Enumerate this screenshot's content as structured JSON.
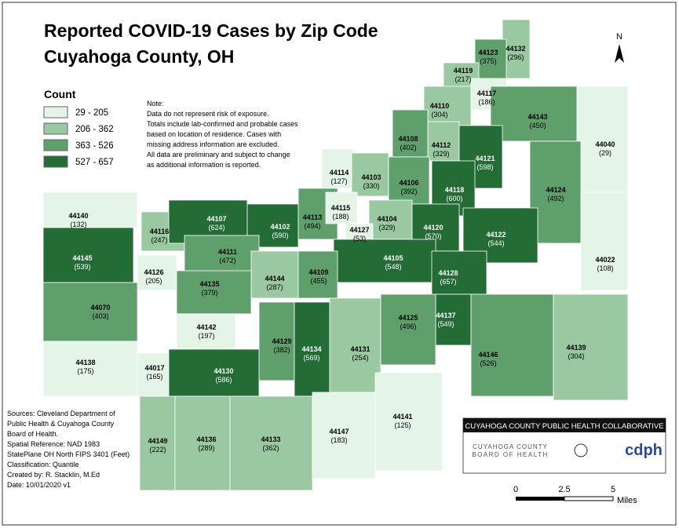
{
  "title": "Reported COVID-19 Cases by Zip Code",
  "subtitle": "Cuyahoga County, OH",
  "legend": {
    "title": "Count",
    "classes": [
      {
        "label": "29 - 205",
        "min": 29,
        "max": 205,
        "color": "#e4f4e6"
      },
      {
        "label": "206 - 362",
        "min": 206,
        "max": 362,
        "color": "#99c8a1"
      },
      {
        "label": "363 - 526",
        "min": 363,
        "max": 526,
        "color": "#5f9f6c"
      },
      {
        "label": "527 - 657",
        "min": 527,
        "max": 657,
        "color": "#246c36"
      }
    ]
  },
  "note": [
    "Note:",
    "Data do not represent risk of exposure.",
    "Totals include lab-confirmed and probable cases",
    "based on location of residence. Cases with",
    "missing address information are excluded.",
    "All data are preliminary and subject to change",
    "as additional information is reported."
  ],
  "sources": [
    "Sources: Cleveland Department of",
    "Public Health & Cuyahoga County",
    "Board of Health.",
    "Spatial Reference: NAD 1983",
    "StatePlane OH North FIPS 3401 (Feet)",
    "Classification: Quantile",
    "Created by: R. Stacklin, M.Ed",
    "Date: 10/01/2020 v1"
  ],
  "north": "N",
  "scale": {
    "ticks": [
      "0",
      "2.5",
      "5"
    ],
    "unit": "Miles"
  },
  "logo": {
    "banner": "CUYAHOGA COUNTY PUBLIC HEALTH COLLABORATIVE",
    "board_line1": "CUYAHOGA COUNTY",
    "board_line2": "BOARD OF HEALTH",
    "cdph": "cdph"
  },
  "zips": [
    {
      "zip": "44132",
      "count": 296,
      "count_label": "(296)"
    },
    {
      "zip": "44123",
      "count": 375,
      "count_label": "(375)"
    },
    {
      "zip": "44119",
      "count": 217,
      "count_label": "(217)"
    },
    {
      "zip": "44117",
      "count": 186,
      "count_label": "(186)"
    },
    {
      "zip": "44110",
      "count": 304,
      "count_label": "(304)"
    },
    {
      "zip": "44143",
      "count": 450,
      "count_label": "(450)"
    },
    {
      "zip": "44108",
      "count": 402,
      "count_label": "(402)"
    },
    {
      "zip": "44112",
      "count": 329,
      "count_label": "(329)"
    },
    {
      "zip": "44121",
      "count": 598,
      "count_label": "(598)"
    },
    {
      "zip": "44040",
      "count": 29,
      "count_label": "(29)"
    },
    {
      "zip": "44114",
      "count": 127,
      "count_label": "(127)"
    },
    {
      "zip": "44103",
      "count": 330,
      "count_label": "(330)"
    },
    {
      "zip": "44106",
      "count": 392,
      "count_label": "(392)"
    },
    {
      "zip": "44118",
      "count": 600,
      "count_label": "(600)"
    },
    {
      "zip": "44124",
      "count": 492,
      "count_label": "(492)"
    },
    {
      "zip": "44140",
      "count": 132,
      "count_label": "(132)"
    },
    {
      "zip": "44116",
      "count": 247,
      "count_label": "(247)"
    },
    {
      "zip": "44107",
      "count": 624,
      "count_label": "(624)"
    },
    {
      "zip": "44102",
      "count": 590,
      "count_label": "(590)"
    },
    {
      "zip": "44113",
      "count": 494,
      "count_label": "(494)"
    },
    {
      "zip": "44115",
      "count": 188,
      "count_label": "(188)"
    },
    {
      "zip": "44104",
      "count": 329,
      "count_label": "(329)"
    },
    {
      "zip": "44127",
      "count": 53,
      "count_label": "(53)"
    },
    {
      "zip": "44120",
      "count": 570,
      "count_label": "(570)"
    },
    {
      "zip": "44122",
      "count": 544,
      "count_label": "(544)"
    },
    {
      "zip": "44145",
      "count": 539,
      "count_label": "(539)"
    },
    {
      "zip": "44111",
      "count": 472,
      "count_label": "(472)"
    },
    {
      "zip": "44126",
      "count": 205,
      "count_label": "(205)"
    },
    {
      "zip": "44105",
      "count": 548,
      "count_label": "(548)"
    },
    {
      "zip": "44022",
      "count": 108,
      "count_label": "(108)"
    },
    {
      "zip": "44144",
      "count": 287,
      "count_label": "(287)"
    },
    {
      "zip": "44109",
      "count": 455,
      "count_label": "(455)"
    },
    {
      "zip": "44135",
      "count": 379,
      "count_label": "(379)"
    },
    {
      "zip": "44128",
      "count": 657,
      "count_label": "(657)"
    },
    {
      "zip": "44070",
      "count": 403,
      "count_label": "(403)"
    },
    {
      "zip": "44142",
      "count": 197,
      "count_label": "(197)"
    },
    {
      "zip": "44137",
      "count": 549,
      "count_label": "(549)"
    },
    {
      "zip": "44125",
      "count": 496,
      "count_label": "(496)"
    },
    {
      "zip": "44129",
      "count": 382,
      "count_label": "(382)"
    },
    {
      "zip": "44134",
      "count": 569,
      "count_label": "(569)"
    },
    {
      "zip": "44131",
      "count": 254,
      "count_label": "(254)"
    },
    {
      "zip": "44146",
      "count": 526,
      "count_label": "(526)"
    },
    {
      "zip": "44139",
      "count": 304,
      "count_label": "(304)"
    },
    {
      "zip": "44138",
      "count": 175,
      "count_label": "(175)"
    },
    {
      "zip": "44017",
      "count": 165,
      "count_label": "(165)"
    },
    {
      "zip": "44130",
      "count": 586,
      "count_label": "(586)"
    },
    {
      "zip": "44149",
      "count": 222,
      "count_label": "(222)"
    },
    {
      "zip": "44136",
      "count": 289,
      "count_label": "(289)"
    },
    {
      "zip": "44133",
      "count": 362,
      "count_label": "(362)"
    },
    {
      "zip": "44147",
      "count": 183,
      "count_label": "(183)"
    },
    {
      "zip": "44141",
      "count": 125,
      "count_label": "(125)"
    }
  ]
}
